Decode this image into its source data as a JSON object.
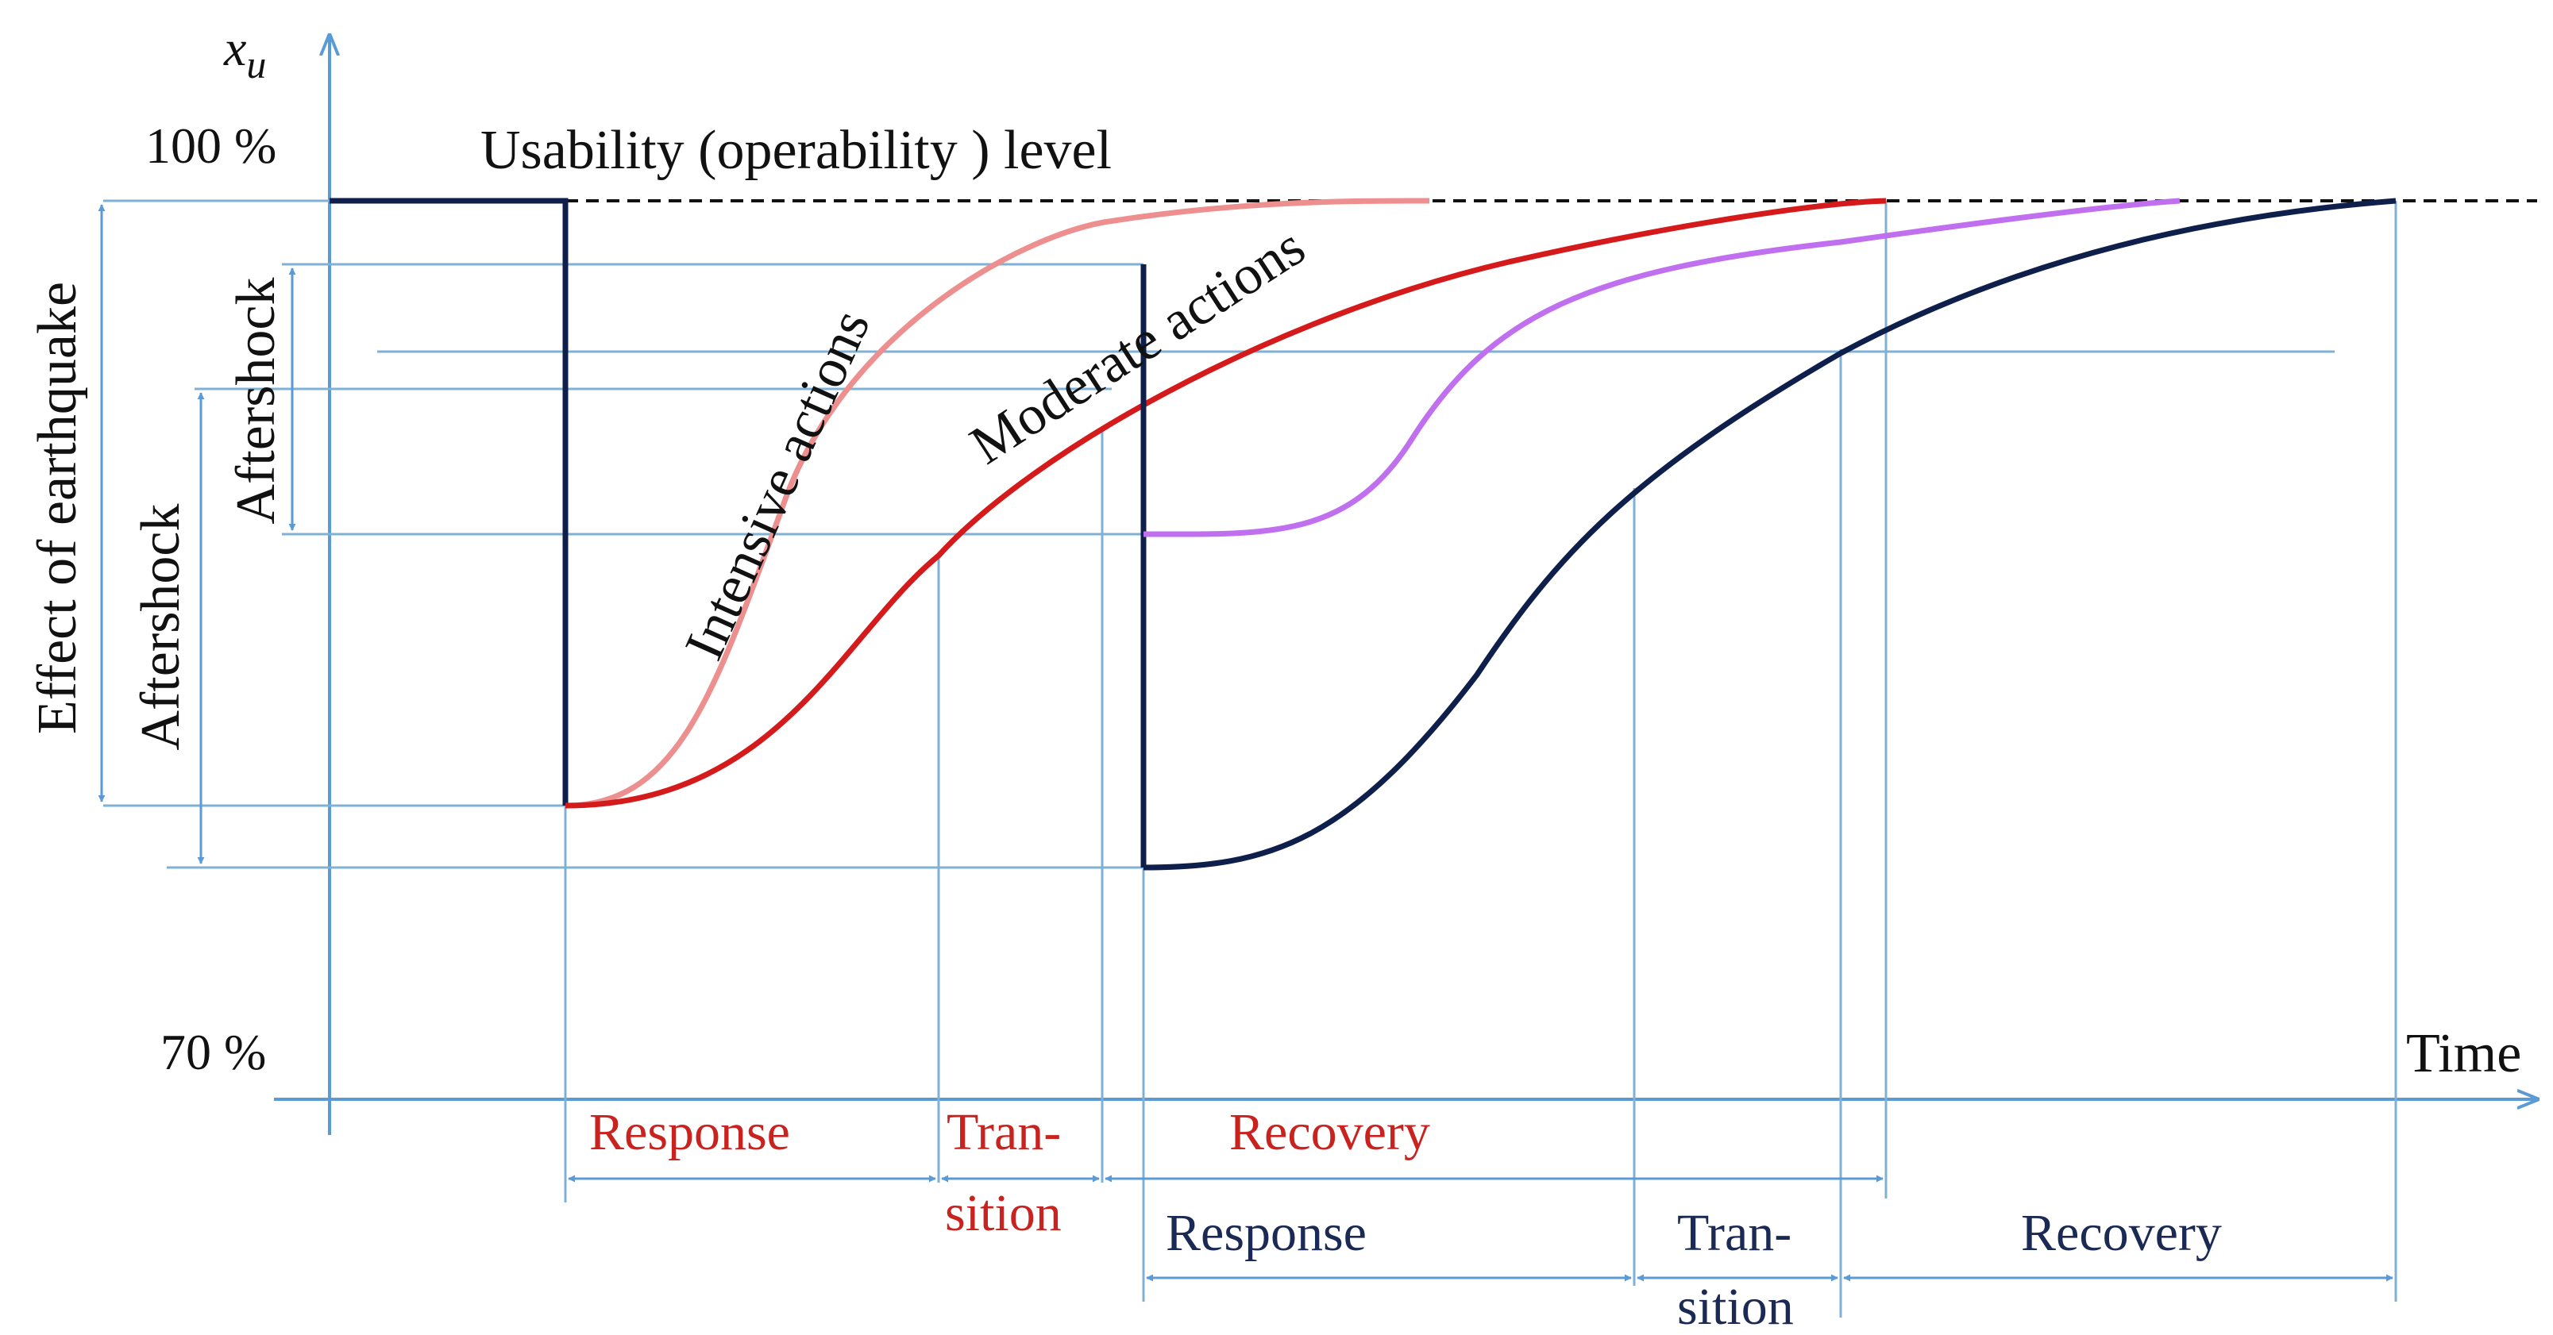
{
  "axes": {
    "y_label": "x",
    "y_label_sub": "u",
    "x_label": "Time",
    "y_top_label": "100 %",
    "y_bottom_label": "70 %"
  },
  "annotations": {
    "usability_level": "Usability (operability ) level",
    "effect_of_earthquake": "Effect of earthquake",
    "aftershock_outer": "Aftershock",
    "aftershock_inner": "Aftershock",
    "intensive_actions": "Intensive actions",
    "moderate_actions": "Moderate actions"
  },
  "phases": {
    "upper": {
      "response": "Response",
      "transition_1": "Tran-",
      "transition_2": "sition",
      "recovery": "Recovery"
    },
    "lower": {
      "response": "Response",
      "transition_1": "Tran-",
      "transition_2": "sition",
      "recovery": "Recovery"
    }
  },
  "colors": {
    "axis": "#5b9bd5",
    "guide": "#7fb0d6",
    "navy": "#0f1f4b",
    "red": "#d41a1a",
    "pink": "#ee8f8f",
    "violet": "#c070ee",
    "phase_red": "#c9231f",
    "phase_navy": "#1b2a55"
  }
}
